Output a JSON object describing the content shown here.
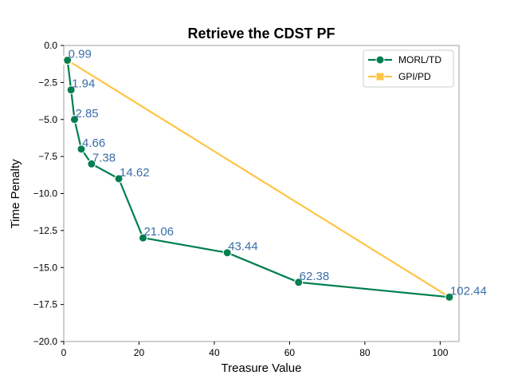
{
  "chart_data": {
    "type": "line",
    "title": "Retrieve the CDST PF",
    "xlabel": "Treasure Value",
    "ylabel": "Time Penalty",
    "xlim": [
      0,
      105
    ],
    "ylim": [
      -20,
      0
    ],
    "xticks": [
      0,
      20,
      40,
      60,
      80,
      100
    ],
    "yticks": [
      0.0,
      -2.5,
      -5.0,
      -7.5,
      -10.0,
      -12.5,
      -15.0,
      -17.5,
      -20.0
    ],
    "xtick_labels": [
      "0",
      "20",
      "40",
      "60",
      "80",
      "100"
    ],
    "ytick_labels": [
      "0.0",
      "−2.5",
      "−5.0",
      "−7.5",
      "−10.0",
      "−12.5",
      "−15.0",
      "−17.5",
      "−20.0"
    ],
    "grid": false,
    "legend_position": "top-right",
    "series": [
      {
        "name": "MORL/TD",
        "color": "#007f4e",
        "marker": "circle",
        "x": [
          0.99,
          1.94,
          2.85,
          4.66,
          7.38,
          14.62,
          21.06,
          43.44,
          62.38,
          102.44
        ],
        "y": [
          -1,
          -3,
          -5,
          -7,
          -8,
          -9,
          -13,
          -14,
          -16,
          -17
        ],
        "labels": [
          "0.99",
          "1.94",
          "2.85",
          "4.66",
          "7.38",
          "14.62",
          "21.06",
          "43.44",
          "62.38",
          "102.44"
        ]
      },
      {
        "name": "GPI/PD",
        "color": "#ffc444",
        "marker": "square",
        "x": [
          0.99,
          102.44
        ],
        "y": [
          -1,
          -17
        ]
      }
    ]
  }
}
